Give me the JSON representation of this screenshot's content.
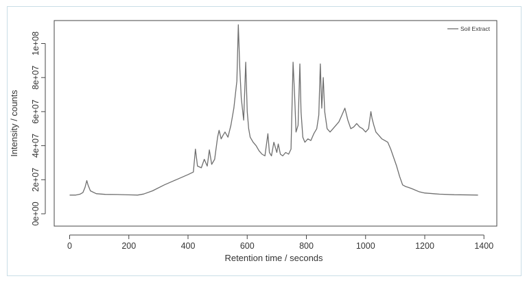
{
  "chart_data": {
    "type": "line",
    "title": "",
    "xlabel": "Retention time / seconds",
    "ylabel": "Intensity / counts",
    "xlim": [
      0,
      1400
    ],
    "ylim": [
      0,
      110000000
    ],
    "x_ticks": [
      0,
      200,
      400,
      600,
      800,
      1000,
      1200,
      1400
    ],
    "x_tick_labels": [
      "0",
      "200",
      "400",
      "600",
      "800",
      "1000",
      "1200",
      "1400"
    ],
    "y_ticks": [
      0,
      20000000,
      40000000,
      60000000,
      80000000,
      100000000
    ],
    "y_tick_labels": [
      "0e+00",
      "2e+07",
      "4e+07",
      "6e+07",
      "8e+07",
      "1e+08"
    ],
    "legend": {
      "position": "top-right",
      "entries": [
        "Soil Extract"
      ]
    },
    "line_color": "#6e6e6e",
    "series": [
      {
        "name": "Soil Extract",
        "x": [
          0,
          20,
          35,
          45,
          52,
          58,
          62,
          70,
          90,
          120,
          160,
          200,
          230,
          250,
          280,
          320,
          360,
          400,
          418,
          425,
          432,
          445,
          455,
          465,
          472,
          480,
          490,
          500,
          505,
          512,
          518,
          525,
          535,
          545,
          555,
          565,
          570,
          575,
          580,
          588,
          595,
          600,
          605,
          610,
          620,
          630,
          640,
          650,
          660,
          670,
          675,
          682,
          690,
          700,
          705,
          712,
          720,
          730,
          740,
          748,
          755,
          760,
          765,
          772,
          778,
          782,
          788,
          795,
          805,
          815,
          825,
          835,
          842,
          847,
          852,
          857,
          862,
          870,
          880,
          890,
          900,
          910,
          920,
          930,
          940,
          950,
          960,
          970,
          980,
          990,
          1000,
          1010,
          1018,
          1022,
          1028,
          1035,
          1045,
          1055,
          1065,
          1075,
          1085,
          1095,
          1105,
          1115,
          1125,
          1135,
          1145,
          1160,
          1180,
          1200,
          1250,
          1300,
          1380
        ],
        "y": [
          11000000,
          11000000,
          11500000,
          12500000,
          15500000,
          19500000,
          17000000,
          13500000,
          11800000,
          11400000,
          11300000,
          11100000,
          11000000,
          11600000,
          13500000,
          17000000,
          20000000,
          23000000,
          24500000,
          38000000,
          28000000,
          27000000,
          32000000,
          28000000,
          37500000,
          29000000,
          32000000,
          45000000,
          49000000,
          44000000,
          46000000,
          48000000,
          45000000,
          52000000,
          62000000,
          78000000,
          111000000,
          85000000,
          68000000,
          55000000,
          89000000,
          60000000,
          50000000,
          45000000,
          42000000,
          40000000,
          37000000,
          35000000,
          34000000,
          47000000,
          36000000,
          34000000,
          42000000,
          36000000,
          41000000,
          35000000,
          34000000,
          36000000,
          35000000,
          38000000,
          89000000,
          70000000,
          48000000,
          52000000,
          88000000,
          60000000,
          45000000,
          42000000,
          44000000,
          43000000,
          47000000,
          50000000,
          58000000,
          88000000,
          62000000,
          80000000,
          60000000,
          50000000,
          48000000,
          50000000,
          52000000,
          54000000,
          58000000,
          62000000,
          55000000,
          50000000,
          51000000,
          53000000,
          51000000,
          50000000,
          48000000,
          50000000,
          60000000,
          56000000,
          52000000,
          48000000,
          46000000,
          44000000,
          43000000,
          42000000,
          38000000,
          33000000,
          28000000,
          22000000,
          17000000,
          16000000,
          15500000,
          14500000,
          13000000,
          12200000,
          11500000,
          11200000,
          11000000
        ]
      }
    ]
  }
}
